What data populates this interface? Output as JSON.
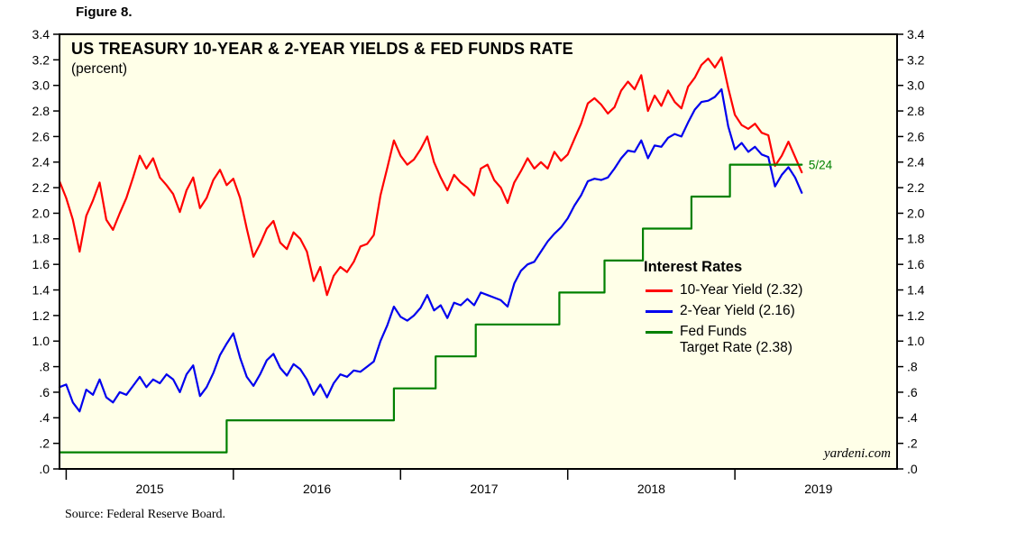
{
  "figure_label": "Figure 8.",
  "source": "Source: Federal Reserve Board.",
  "watermark": "yardeni.com",
  "chart_data": {
    "type": "line",
    "title": "US TREASURY 10-YEAR & 2-YEAR YIELDS & FED FUNDS RATE",
    "subtitle": "(percent)",
    "background_color": "#FFFFE8",
    "frame_color": "#000000",
    "grid": false,
    "x_domain": [
      2014.96,
      2019.97
    ],
    "ylim": [
      0,
      3.4
    ],
    "y_tick_step": 0.2,
    "y_tick_labels": [
      ".0",
      ".2",
      ".4",
      ".6",
      ".8",
      "1.0",
      "1.2",
      "1.4",
      "1.6",
      "1.8",
      "2.0",
      "2.2",
      "2.4",
      "2.6",
      "2.8",
      "3.0",
      "3.2",
      "3.4"
    ],
    "x_ticks": [
      2015,
      2016,
      2017,
      2018,
      2019
    ],
    "x_tick_labels": [
      "2015",
      "2016",
      "2017",
      "2018",
      "2019"
    ],
    "legend": {
      "title": "Interest Rates",
      "position": "inside-right-middle",
      "entries": [
        {
          "lines": [
            "10-Year Yield (2.32)"
          ],
          "color": "#FF0000"
        },
        {
          "lines": [
            "2-Year Yield (2.16)"
          ],
          "color": "#0000EE"
        },
        {
          "lines": [
            "Fed Funds",
            "Target Rate (2.38)"
          ],
          "color": "#008000"
        }
      ]
    },
    "annotation": {
      "text": "5/24",
      "x": 2019.43,
      "y": 2.38,
      "color": "#008000"
    },
    "series": [
      {
        "name": "10-Year Yield",
        "color": "#FF0000",
        "style": "line",
        "last_value": 2.32,
        "x_start": 2014.96,
        "x_step": 0.04,
        "values": [
          2.25,
          2.12,
          1.95,
          1.7,
          1.98,
          2.1,
          2.24,
          1.95,
          1.87,
          2.0,
          2.12,
          2.28,
          2.45,
          2.35,
          2.43,
          2.28,
          2.22,
          2.15,
          2.01,
          2.18,
          2.28,
          2.04,
          2.12,
          2.26,
          2.34,
          2.22,
          2.27,
          2.12,
          1.88,
          1.66,
          1.76,
          1.88,
          1.94,
          1.77,
          1.72,
          1.85,
          1.8,
          1.7,
          1.47,
          1.58,
          1.36,
          1.51,
          1.58,
          1.54,
          1.62,
          1.74,
          1.76,
          1.83,
          2.14,
          2.35,
          2.57,
          2.45,
          2.38,
          2.42,
          2.5,
          2.6,
          2.4,
          2.28,
          2.18,
          2.3,
          2.24,
          2.2,
          2.14,
          2.35,
          2.38,
          2.26,
          2.2,
          2.08,
          2.24,
          2.33,
          2.43,
          2.35,
          2.4,
          2.35,
          2.48,
          2.41,
          2.46,
          2.58,
          2.7,
          2.86,
          2.9,
          2.85,
          2.78,
          2.83,
          2.96,
          3.03,
          2.97,
          3.08,
          2.8,
          2.92,
          2.84,
          2.96,
          2.87,
          2.82,
          2.99,
          3.06,
          3.16,
          3.21,
          3.14,
          3.22,
          2.98,
          2.77,
          2.69,
          2.66,
          2.7,
          2.63,
          2.61,
          2.37,
          2.45,
          2.56,
          2.44,
          2.32
        ]
      },
      {
        "name": "2-Year Yield",
        "color": "#0000EE",
        "style": "line",
        "last_value": 2.16,
        "x_start": 2014.96,
        "x_step": 0.04,
        "values": [
          0.64,
          0.66,
          0.52,
          0.45,
          0.62,
          0.58,
          0.7,
          0.56,
          0.52,
          0.6,
          0.58,
          0.65,
          0.72,
          0.64,
          0.7,
          0.67,
          0.74,
          0.7,
          0.6,
          0.74,
          0.81,
          0.57,
          0.64,
          0.75,
          0.89,
          0.98,
          1.06,
          0.87,
          0.72,
          0.65,
          0.74,
          0.85,
          0.9,
          0.79,
          0.73,
          0.82,
          0.78,
          0.7,
          0.58,
          0.66,
          0.56,
          0.67,
          0.74,
          0.72,
          0.77,
          0.76,
          0.8,
          0.84,
          1.0,
          1.12,
          1.27,
          1.19,
          1.16,
          1.2,
          1.26,
          1.36,
          1.24,
          1.28,
          1.18,
          1.3,
          1.28,
          1.33,
          1.28,
          1.38,
          1.36,
          1.34,
          1.32,
          1.27,
          1.45,
          1.55,
          1.6,
          1.62,
          1.7,
          1.78,
          1.84,
          1.89,
          1.96,
          2.06,
          2.14,
          2.25,
          2.27,
          2.26,
          2.28,
          2.35,
          2.43,
          2.49,
          2.48,
          2.57,
          2.43,
          2.53,
          2.52,
          2.59,
          2.62,
          2.6,
          2.71,
          2.81,
          2.87,
          2.88,
          2.91,
          2.97,
          2.68,
          2.5,
          2.55,
          2.48,
          2.52,
          2.46,
          2.44,
          2.21,
          2.3,
          2.36,
          2.28,
          2.16
        ]
      },
      {
        "name": "Fed Funds Target Rate",
        "color": "#008000",
        "style": "step",
        "last_value": 2.38,
        "points": [
          [
            2014.96,
            0.13
          ],
          [
            2015.96,
            0.13
          ],
          [
            2015.96,
            0.38
          ],
          [
            2016.96,
            0.38
          ],
          [
            2016.96,
            0.63
          ],
          [
            2017.21,
            0.63
          ],
          [
            2017.21,
            0.88
          ],
          [
            2017.45,
            0.88
          ],
          [
            2017.45,
            1.13
          ],
          [
            2017.95,
            1.13
          ],
          [
            2017.95,
            1.38
          ],
          [
            2018.22,
            1.38
          ],
          [
            2018.22,
            1.63
          ],
          [
            2018.45,
            1.63
          ],
          [
            2018.45,
            1.88
          ],
          [
            2018.74,
            1.88
          ],
          [
            2018.74,
            2.13
          ],
          [
            2018.97,
            2.13
          ],
          [
            2018.97,
            2.38
          ],
          [
            2019.4,
            2.38
          ]
        ]
      }
    ]
  }
}
